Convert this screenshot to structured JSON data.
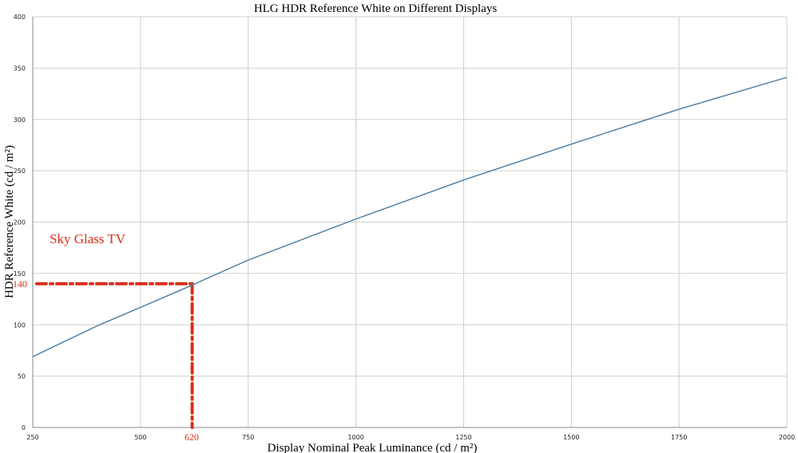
{
  "chart_data": {
    "type": "line",
    "title": "HLG HDR Reference White on Different Displays",
    "xlabel": "Display Nominal Peak Luminance (cd / m²)",
    "ylabel": "HDR Reference White (cd / m²)",
    "xlim": [
      250,
      2000
    ],
    "ylim": [
      0,
      400
    ],
    "xticks": [
      250,
      500,
      750,
      1000,
      1250,
      1500,
      1750,
      2000
    ],
    "yticks": [
      0,
      50,
      100,
      150,
      200,
      250,
      300,
      350,
      400
    ],
    "grid": true,
    "legend": "none",
    "series": [
      {
        "color": "#4a7ba0",
        "x": [
          250,
          300,
          400,
          500,
          600,
          750,
          1000,
          1250,
          1500,
          1750,
          2000
        ],
        "y": [
          69,
          79,
          99,
          117,
          135,
          163,
          203,
          241,
          276,
          310,
          341
        ]
      }
    ],
    "annotation": {
      "label": "Sky Glass TV",
      "x_value": 620,
      "y_value": 140,
      "x_marker_label": "620",
      "y_marker_label": "140",
      "color": "#d6301c"
    },
    "colors": {
      "grid": "#cfcfcf",
      "axis": "#8a8a8a",
      "text": "#000000"
    }
  }
}
